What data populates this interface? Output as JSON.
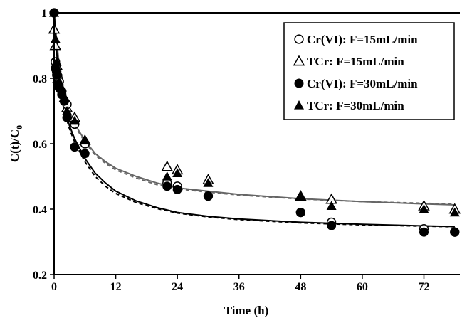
{
  "chart_data": {
    "type": "scatter",
    "xlabel": "Time (h)",
    "ylabel_main": "C(t)/C",
    "ylabel_sub": "0",
    "xlim": [
      0,
      79
    ],
    "ylim": [
      0.2,
      1.0
    ],
    "xticks": [
      0,
      12,
      24,
      36,
      48,
      60,
      72
    ],
    "yticks": [
      0.2,
      0.4,
      0.6,
      0.8,
      1.0
    ],
    "ytick_labels": [
      "0.2",
      "0.4",
      "0.6",
      "0.8",
      "1"
    ],
    "grid": false,
    "legend_position": "top-right",
    "series": [
      {
        "name": "Cr(VI): F=15mL/min",
        "marker": "circle-open",
        "color": "#000000",
        "points": [
          [
            0,
            1.0
          ],
          [
            0.25,
            0.85
          ],
          [
            0.5,
            0.82
          ],
          [
            0.75,
            0.8
          ],
          [
            1,
            0.79
          ],
          [
            1.5,
            0.76
          ],
          [
            2,
            0.73
          ],
          [
            2.5,
            0.72
          ],
          [
            4,
            0.66
          ],
          [
            6,
            0.6
          ],
          [
            22,
            0.48
          ],
          [
            24,
            0.47
          ],
          [
            30,
            0.44
          ],
          [
            48,
            0.39
          ],
          [
            54,
            0.36
          ],
          [
            72,
            0.34
          ],
          [
            78,
            0.33
          ]
        ]
      },
      {
        "name": "TCr: F=15mL/min",
        "marker": "triangle-open",
        "color": "#000000",
        "points": [
          [
            0,
            0.95
          ],
          [
            0.25,
            0.9
          ],
          [
            0.5,
            0.84
          ],
          [
            0.75,
            0.8
          ],
          [
            1,
            0.78
          ],
          [
            2,
            0.74
          ],
          [
            2.5,
            0.71
          ],
          [
            4,
            0.68
          ],
          [
            6,
            0.61
          ],
          [
            22,
            0.53
          ],
          [
            24,
            0.52
          ],
          [
            30,
            0.49
          ],
          [
            48,
            0.44
          ],
          [
            54,
            0.43
          ],
          [
            72,
            0.41
          ],
          [
            78,
            0.4
          ]
        ]
      },
      {
        "name": "Cr(VI): F=30mL/min",
        "marker": "circle-filled",
        "color": "#000000",
        "points": [
          [
            0,
            1.0
          ],
          [
            0.25,
            0.83
          ],
          [
            0.5,
            0.81
          ],
          [
            0.75,
            0.78
          ],
          [
            1,
            0.77
          ],
          [
            1.5,
            0.75
          ],
          [
            2,
            0.73
          ],
          [
            2.5,
            0.68
          ],
          [
            4,
            0.59
          ],
          [
            6,
            0.57
          ],
          [
            22,
            0.47
          ],
          [
            24,
            0.46
          ],
          [
            30,
            0.44
          ],
          [
            48,
            0.39
          ],
          [
            54,
            0.35
          ],
          [
            72,
            0.33
          ],
          [
            78,
            0.33
          ]
        ]
      },
      {
        "name": "TCr: F=30mL/min",
        "marker": "triangle-filled",
        "color": "#000000",
        "points": [
          [
            0,
            1.0
          ],
          [
            0.25,
            0.92
          ],
          [
            0.5,
            0.85
          ],
          [
            0.75,
            0.82
          ],
          [
            1,
            0.79
          ],
          [
            1.5,
            0.77
          ],
          [
            2,
            0.74
          ],
          [
            2.5,
            0.7
          ],
          [
            4,
            0.67
          ],
          [
            6,
            0.61
          ],
          [
            22,
            0.5
          ],
          [
            24,
            0.51
          ],
          [
            30,
            0.48
          ],
          [
            48,
            0.44
          ],
          [
            54,
            0.41
          ],
          [
            72,
            0.4
          ],
          [
            78,
            0.39
          ]
        ]
      }
    ],
    "curves": [
      {
        "color": "#666666",
        "dash": false,
        "points": [
          [
            0,
            1.0
          ],
          [
            0.3,
            0.95
          ],
          [
            0.6,
            0.9
          ],
          [
            1,
            0.84
          ],
          [
            1.5,
            0.79
          ],
          [
            2,
            0.75
          ],
          [
            3,
            0.7
          ],
          [
            4,
            0.66
          ],
          [
            6,
            0.61
          ],
          [
            8,
            0.57
          ],
          [
            10,
            0.545
          ],
          [
            12,
            0.525
          ],
          [
            16,
            0.5
          ],
          [
            20,
            0.48
          ],
          [
            24,
            0.465
          ],
          [
            30,
            0.455
          ],
          [
            36,
            0.445
          ],
          [
            48,
            0.432
          ],
          [
            60,
            0.423
          ],
          [
            72,
            0.416
          ],
          [
            78,
            0.413
          ]
        ]
      },
      {
        "color": "#666666",
        "dash": true,
        "points": [
          [
            0,
            1.0
          ],
          [
            0.3,
            0.94
          ],
          [
            0.6,
            0.89
          ],
          [
            1,
            0.83
          ],
          [
            1.5,
            0.78
          ],
          [
            2,
            0.745
          ],
          [
            3,
            0.695
          ],
          [
            4,
            0.655
          ],
          [
            6,
            0.605
          ],
          [
            8,
            0.565
          ],
          [
            10,
            0.54
          ],
          [
            12,
            0.52
          ],
          [
            16,
            0.495
          ],
          [
            20,
            0.475
          ],
          [
            24,
            0.462
          ],
          [
            30,
            0.452
          ],
          [
            36,
            0.443
          ],
          [
            48,
            0.431
          ],
          [
            60,
            0.423
          ],
          [
            72,
            0.418
          ],
          [
            78,
            0.416
          ]
        ]
      },
      {
        "color": "#000000",
        "dash": false,
        "points": [
          [
            0,
            1.0
          ],
          [
            0.3,
            0.93
          ],
          [
            0.6,
            0.86
          ],
          [
            1,
            0.8
          ],
          [
            1.5,
            0.75
          ],
          [
            2,
            0.71
          ],
          [
            3,
            0.655
          ],
          [
            4,
            0.615
          ],
          [
            6,
            0.555
          ],
          [
            8,
            0.51
          ],
          [
            10,
            0.48
          ],
          [
            12,
            0.455
          ],
          [
            16,
            0.425
          ],
          [
            20,
            0.405
          ],
          [
            24,
            0.39
          ],
          [
            30,
            0.378
          ],
          [
            36,
            0.37
          ],
          [
            48,
            0.36
          ],
          [
            60,
            0.354
          ],
          [
            72,
            0.349
          ],
          [
            78,
            0.347
          ]
        ]
      },
      {
        "color": "#000000",
        "dash": true,
        "points": [
          [
            0,
            1.0
          ],
          [
            0.3,
            0.92
          ],
          [
            0.6,
            0.85
          ],
          [
            1,
            0.79
          ],
          [
            1.5,
            0.74
          ],
          [
            2,
            0.7
          ],
          [
            3,
            0.645
          ],
          [
            4,
            0.605
          ],
          [
            6,
            0.545
          ],
          [
            8,
            0.5
          ],
          [
            10,
            0.47
          ],
          [
            12,
            0.448
          ],
          [
            16,
            0.42
          ],
          [
            20,
            0.402
          ],
          [
            24,
            0.388
          ],
          [
            30,
            0.376
          ],
          [
            36,
            0.368
          ],
          [
            48,
            0.358
          ],
          [
            60,
            0.352
          ],
          [
            72,
            0.348
          ],
          [
            78,
            0.346
          ]
        ]
      }
    ]
  }
}
